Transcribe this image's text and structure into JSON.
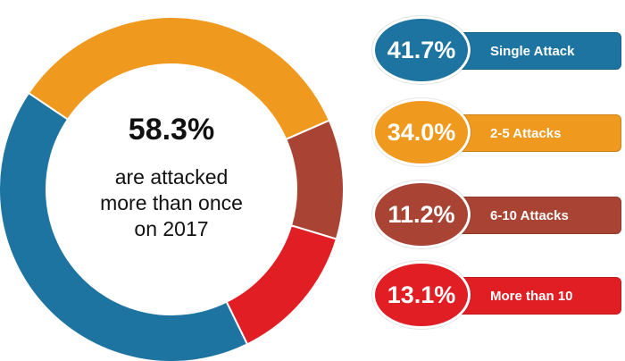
{
  "chart_data": {
    "type": "pie",
    "categories": [
      "Single Attack",
      "2-5 Attacks",
      "6-10 Attacks",
      "More than 10"
    ],
    "values": [
      41.7,
      34.0,
      11.2,
      13.1
    ],
    "value_labels": [
      "41.7%",
      "34.0%",
      "11.2%",
      "13.1%"
    ],
    "colors": [
      "#1d74a1",
      "#f0991f",
      "#a94434",
      "#e21e25"
    ],
    "donut": true,
    "legend_position": "right",
    "center_value": "58.3%",
    "center_caption": [
      "are attacked",
      "more than once",
      "on 2017"
    ]
  }
}
